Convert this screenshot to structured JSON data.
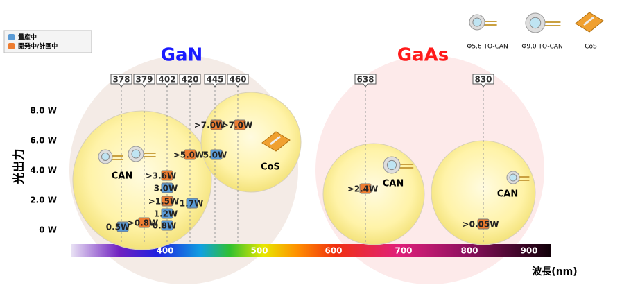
{
  "legend": [
    {
      "label": "量産中",
      "color": "#5b9bd5"
    },
    {
      "label": "開発中/計画中",
      "color": "#ed7d31"
    }
  ],
  "groups": [
    {
      "label": "GaN",
      "color": "#1a1aff"
    },
    {
      "label": "GaAs",
      "color": "#ff1a1a"
    }
  ],
  "wavelengths": [
    378,
    379,
    402,
    420,
    445,
    460,
    638,
    830
  ],
  "y_axis": {
    "label": "光出力",
    "ticks": [
      "8.0 W",
      "6.0 W",
      "4.0 W",
      "2.0 W",
      "0 W"
    ]
  },
  "x_axis": {
    "label": "波長(nm)",
    "ticks": [
      400,
      500,
      600,
      700,
      800,
      900
    ]
  },
  "packages": [
    "Φ5.6 TO-CAN",
    "Φ9.0 TO-CAN",
    "CoS"
  ],
  "circle_labels": [
    "CAN",
    "CoS",
    "CAN",
    "CAN"
  ],
  "points": [
    {
      "label": "0.5W",
      "legend": 0
    },
    {
      "label": ">0.8W",
      "legend": 1
    },
    {
      "label": "0.8W",
      "legend": 0
    },
    {
      "label": "1.2W",
      "legend": 0
    },
    {
      "label": ">1.5W",
      "legend": 1
    },
    {
      "label": "3.0W",
      "legend": 0
    },
    {
      "label": ">3.6W",
      "legend": 1
    },
    {
      "label": "1.7W",
      "legend": 0
    },
    {
      "label": ">5.0W",
      "legend": 1
    },
    {
      "label": "5.0W",
      "legend": 0
    },
    {
      "label": ">7.0W",
      "legend": 1
    },
    {
      "label": ">7.0W",
      "legend": 1
    },
    {
      "label": ">2.4W",
      "legend": 1
    },
    {
      "label": ">0.05W",
      "legend": 1
    }
  ]
}
